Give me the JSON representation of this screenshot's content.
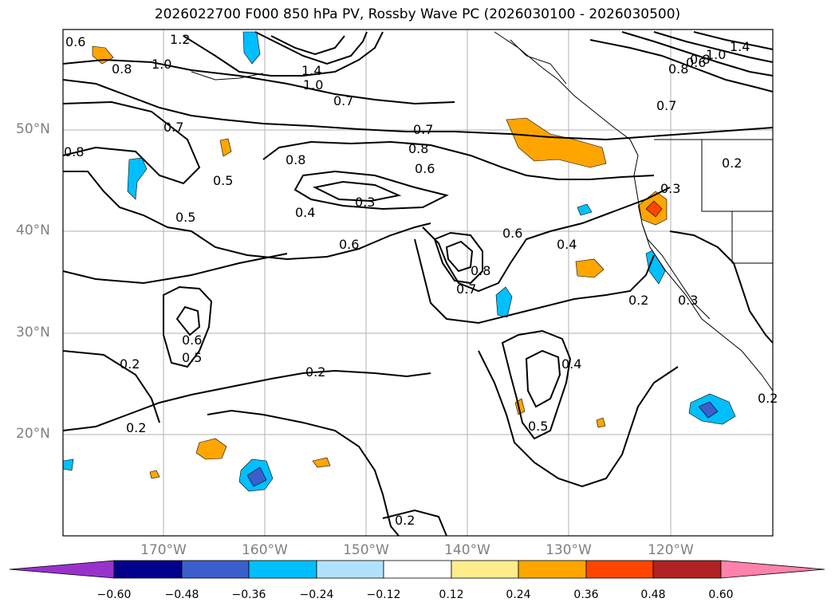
{
  "title": "2026022700 F000 850 hPa PV, Rossby Wave PC (2026030100 - 2026030500)",
  "map": {
    "lat_labels": [
      "50°N",
      "40°N",
      "30°N",
      "20°N"
    ],
    "lon_labels": [
      "170°W",
      "160°W",
      "150°W",
      "140°W",
      "130°W",
      "120°W"
    ],
    "contour_labels": [
      "1.2",
      "1.0",
      "0.8",
      "1.4",
      "1.0",
      "0.7",
      "0.7",
      "0.8",
      "0.5",
      "0.5",
      "0.4",
      "0.3",
      "0.6",
      "0.7",
      "0.8",
      "0.6",
      "0.6",
      "0.8",
      "0.7",
      "0.4",
      "0.3",
      "0.6",
      "0.5",
      "0.2",
      "0.2",
      "0.2",
      "0.2",
      "0.4",
      "0.5",
      "0.2",
      "0.3",
      "0.2",
      "0.7",
      "0.8",
      "0.6",
      "1.4",
      "1.0",
      "0.8",
      "0.2",
      "0.6",
      "0.8"
    ]
  },
  "colorbar": {
    "ticks": [
      "−0.60",
      "−0.48",
      "−0.36",
      "−0.24",
      "−0.12",
      "0.12",
      "0.24",
      "0.36",
      "0.48",
      "0.60"
    ],
    "colors": [
      "#9932cc",
      "#00008b",
      "#3a5fcd",
      "#00bfff",
      "#b0e2ff",
      "#ffffff",
      "#ffec8b",
      "#ffa500",
      "#ff4500",
      "#b22222",
      "#ff82ab"
    ]
  }
}
